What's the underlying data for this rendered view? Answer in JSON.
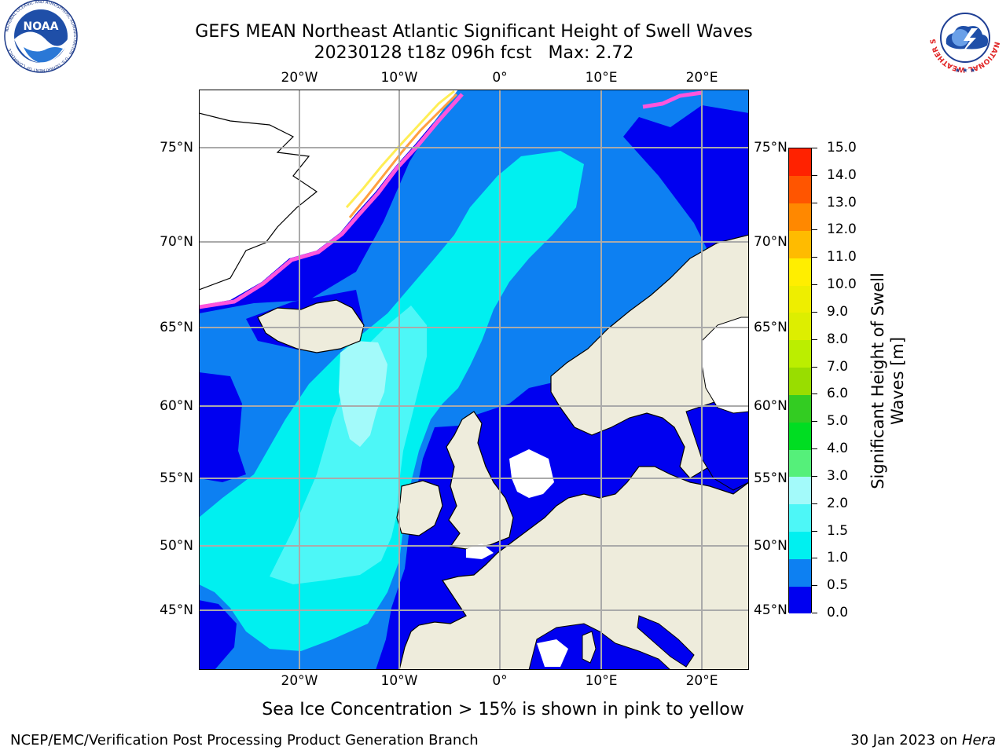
{
  "title": "GEFS MEAN Northeast Atlantic Significant Height of Swell Waves",
  "subtitle": "20230128 t18z 096h fcst   Max: 2.72",
  "logos": {
    "left": {
      "name": "noaa-logo",
      "text": "NOAA",
      "ring_text": "NATIONAL OCEANIC AND ATMOSPHERIC ADMINISTRATION · U.S. DEPARTMENT OF COMMERCE"
    },
    "right": {
      "name": "nws-logo",
      "ring_text": "NATIONAL WEATHER SERVICE"
    }
  },
  "map": {
    "lon_labels": [
      "20°W",
      "10°W",
      "0°",
      "10°E",
      "20°E"
    ],
    "lat_labels": [
      "75°N",
      "70°N",
      "65°N",
      "60°N",
      "55°N",
      "50°N",
      "45°N"
    ],
    "colors": {
      "land": "#eeecdc",
      "ocean_low": "#0000f0",
      "ocean_mid": "#0d80f2",
      "ocean_cyan": "#00f0f0",
      "ocean_light": "#4df7f7",
      "ocean_pale": "#a3fafa",
      "no_data": "#ffffff",
      "ice_pink": "#ff55dd",
      "ice_orange": "#ffa040",
      "ice_yellow": "#ffee55",
      "grid": "#aaaaaa"
    }
  },
  "colorbar": {
    "title_line1": "Significant Height of Swell",
    "title_line2": "Waves [m]",
    "ticks": [
      "0.0",
      "0.5",
      "1.0",
      "1.5",
      "2.0",
      "3.0",
      "4.0",
      "5.0",
      "6.0",
      "7.0",
      "8.0",
      "9.0",
      "10.0",
      "11.0",
      "12.0",
      "13.0",
      "14.0",
      "15.0"
    ],
    "colors": [
      "#0000f0",
      "#0d80f2",
      "#00f0f0",
      "#4df7f7",
      "#a3fafa",
      "#55f07a",
      "#00dd22",
      "#33cc22",
      "#99dd00",
      "#bbee00",
      "#ddee00",
      "#eeee00",
      "#ffee00",
      "#ffbb00",
      "#ff8800",
      "#ff5500",
      "#ff2200"
    ]
  },
  "footnote": "Sea Ice Concentration > 15% is shown in pink to yellow",
  "footer": {
    "credit": "NCEP/EMC/Verification Post Processing Product Generation Branch",
    "date_prefix": "30 Jan 2023 on ",
    "machine": "Hera"
  }
}
